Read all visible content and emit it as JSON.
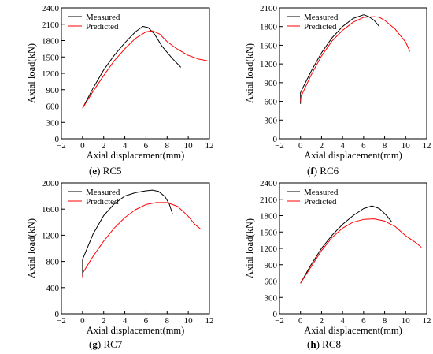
{
  "chart_data": [
    {
      "type": "line",
      "panel_letter": "e",
      "panel_name": "RC5",
      "xlabel": "Axial displacement(mm)",
      "ylabel": "Axial load(kN)",
      "xlim": [
        -2,
        12
      ],
      "ylim": [
        0,
        2400
      ],
      "xticks": [
        -2,
        0,
        2,
        4,
        6,
        8,
        10,
        12
      ],
      "yticks": [
        0,
        300,
        600,
        900,
        1200,
        1500,
        1800,
        2100,
        2400
      ],
      "legend_position": "top-left",
      "series": [
        {
          "name": "Measured",
          "color": "#000000",
          "x": [
            0,
            1,
            2,
            3,
            4,
            5,
            5.7,
            6.2,
            6.8,
            7.5,
            8.5,
            9.3
          ],
          "y": [
            560,
            930,
            1260,
            1530,
            1760,
            1960,
            2060,
            2040,
            1920,
            1700,
            1470,
            1310
          ]
        },
        {
          "name": "Predicted",
          "color": "#ff0000",
          "x": [
            0,
            1,
            2,
            3,
            4,
            5,
            6,
            6.6,
            7.3,
            8,
            9,
            10,
            11,
            11.8
          ],
          "y": [
            560,
            870,
            1160,
            1430,
            1650,
            1840,
            1960,
            1980,
            1920,
            1780,
            1640,
            1530,
            1460,
            1430
          ]
        }
      ]
    },
    {
      "type": "line",
      "panel_letter": "f",
      "panel_name": "RC6",
      "xlabel": "Axial displacement(mm)",
      "ylabel": "Axial load(kN)",
      "xlim": [
        -2,
        12
      ],
      "ylim": [
        0,
        2100
      ],
      "xticks": [
        -2,
        0,
        2,
        4,
        6,
        8,
        10,
        12
      ],
      "yticks": [
        0,
        300,
        600,
        900,
        1200,
        1500,
        1800,
        2100
      ],
      "legend_position": "top-left",
      "series": [
        {
          "name": "Measured",
          "color": "#000000",
          "x": [
            0,
            0,
            0.05,
            1,
            2,
            3,
            4,
            5,
            6,
            6.5,
            7,
            7.5
          ],
          "y": [
            560,
            740,
            760,
            1080,
            1380,
            1620,
            1800,
            1930,
            1990,
            1960,
            1900,
            1800
          ]
        },
        {
          "name": "Predicted",
          "color": "#ff0000",
          "x": [
            0,
            0.05,
            1,
            2,
            3,
            4,
            5,
            6,
            7,
            7.5,
            8,
            9,
            10,
            10.4
          ],
          "y": [
            600,
            680,
            1020,
            1330,
            1570,
            1740,
            1870,
            1950,
            1960,
            1950,
            1900,
            1760,
            1550,
            1400
          ]
        }
      ]
    },
    {
      "type": "line",
      "panel_letter": "g",
      "panel_name": "RC7",
      "xlabel": "Axial displacement(mm)",
      "ylabel": "Axial load(kN)",
      "xlim": [
        -2,
        12
      ],
      "ylim": [
        0,
        2000
      ],
      "xticks": [
        -2,
        0,
        2,
        4,
        6,
        8,
        10,
        12
      ],
      "yticks": [
        0,
        400,
        800,
        1200,
        1600,
        2000
      ],
      "legend_position": "top-left",
      "series": [
        {
          "name": "Measured",
          "color": "#000000",
          "x": [
            0,
            0,
            1,
            2,
            3,
            4,
            5,
            6,
            6.6,
            7.2,
            7.8,
            8.2,
            8.5
          ],
          "y": [
            560,
            830,
            1220,
            1500,
            1680,
            1800,
            1850,
            1880,
            1890,
            1870,
            1790,
            1680,
            1530
          ]
        },
        {
          "name": "Predicted",
          "color": "#ff0000",
          "x": [
            0,
            0.05,
            1,
            2,
            3,
            4,
            5,
            6,
            7,
            8,
            9,
            10,
            10.6,
            11.2
          ],
          "y": [
            560,
            630,
            880,
            1110,
            1310,
            1470,
            1590,
            1670,
            1700,
            1700,
            1640,
            1490,
            1370,
            1290
          ]
        }
      ]
    },
    {
      "type": "line",
      "panel_letter": "h",
      "panel_name": "RC8",
      "xlabel": "Axial displacement(mm)",
      "ylabel": "Axial load(kN)",
      "xlim": [
        -2,
        12
      ],
      "ylim": [
        0,
        2400
      ],
      "xticks": [
        -2,
        0,
        2,
        4,
        6,
        8,
        10,
        12
      ],
      "yticks": [
        0,
        300,
        600,
        900,
        1200,
        1500,
        1800,
        2100,
        2400
      ],
      "legend_position": "top-left",
      "series": [
        {
          "name": "Measured",
          "color": "#000000",
          "x": [
            0,
            1,
            2,
            3,
            4,
            5,
            6,
            6.8,
            7.5,
            8.2,
            8.7
          ],
          "y": [
            560,
            900,
            1200,
            1440,
            1640,
            1800,
            1930,
            1980,
            1930,
            1800,
            1680
          ]
        },
        {
          "name": "Predicted",
          "color": "#ff0000",
          "x": [
            0,
            1,
            2,
            3,
            4,
            5,
            6,
            7,
            8,
            9,
            10,
            11,
            11.5
          ],
          "y": [
            560,
            860,
            1160,
            1400,
            1570,
            1680,
            1730,
            1740,
            1700,
            1600,
            1430,
            1300,
            1220
          ]
        }
      ]
    }
  ]
}
